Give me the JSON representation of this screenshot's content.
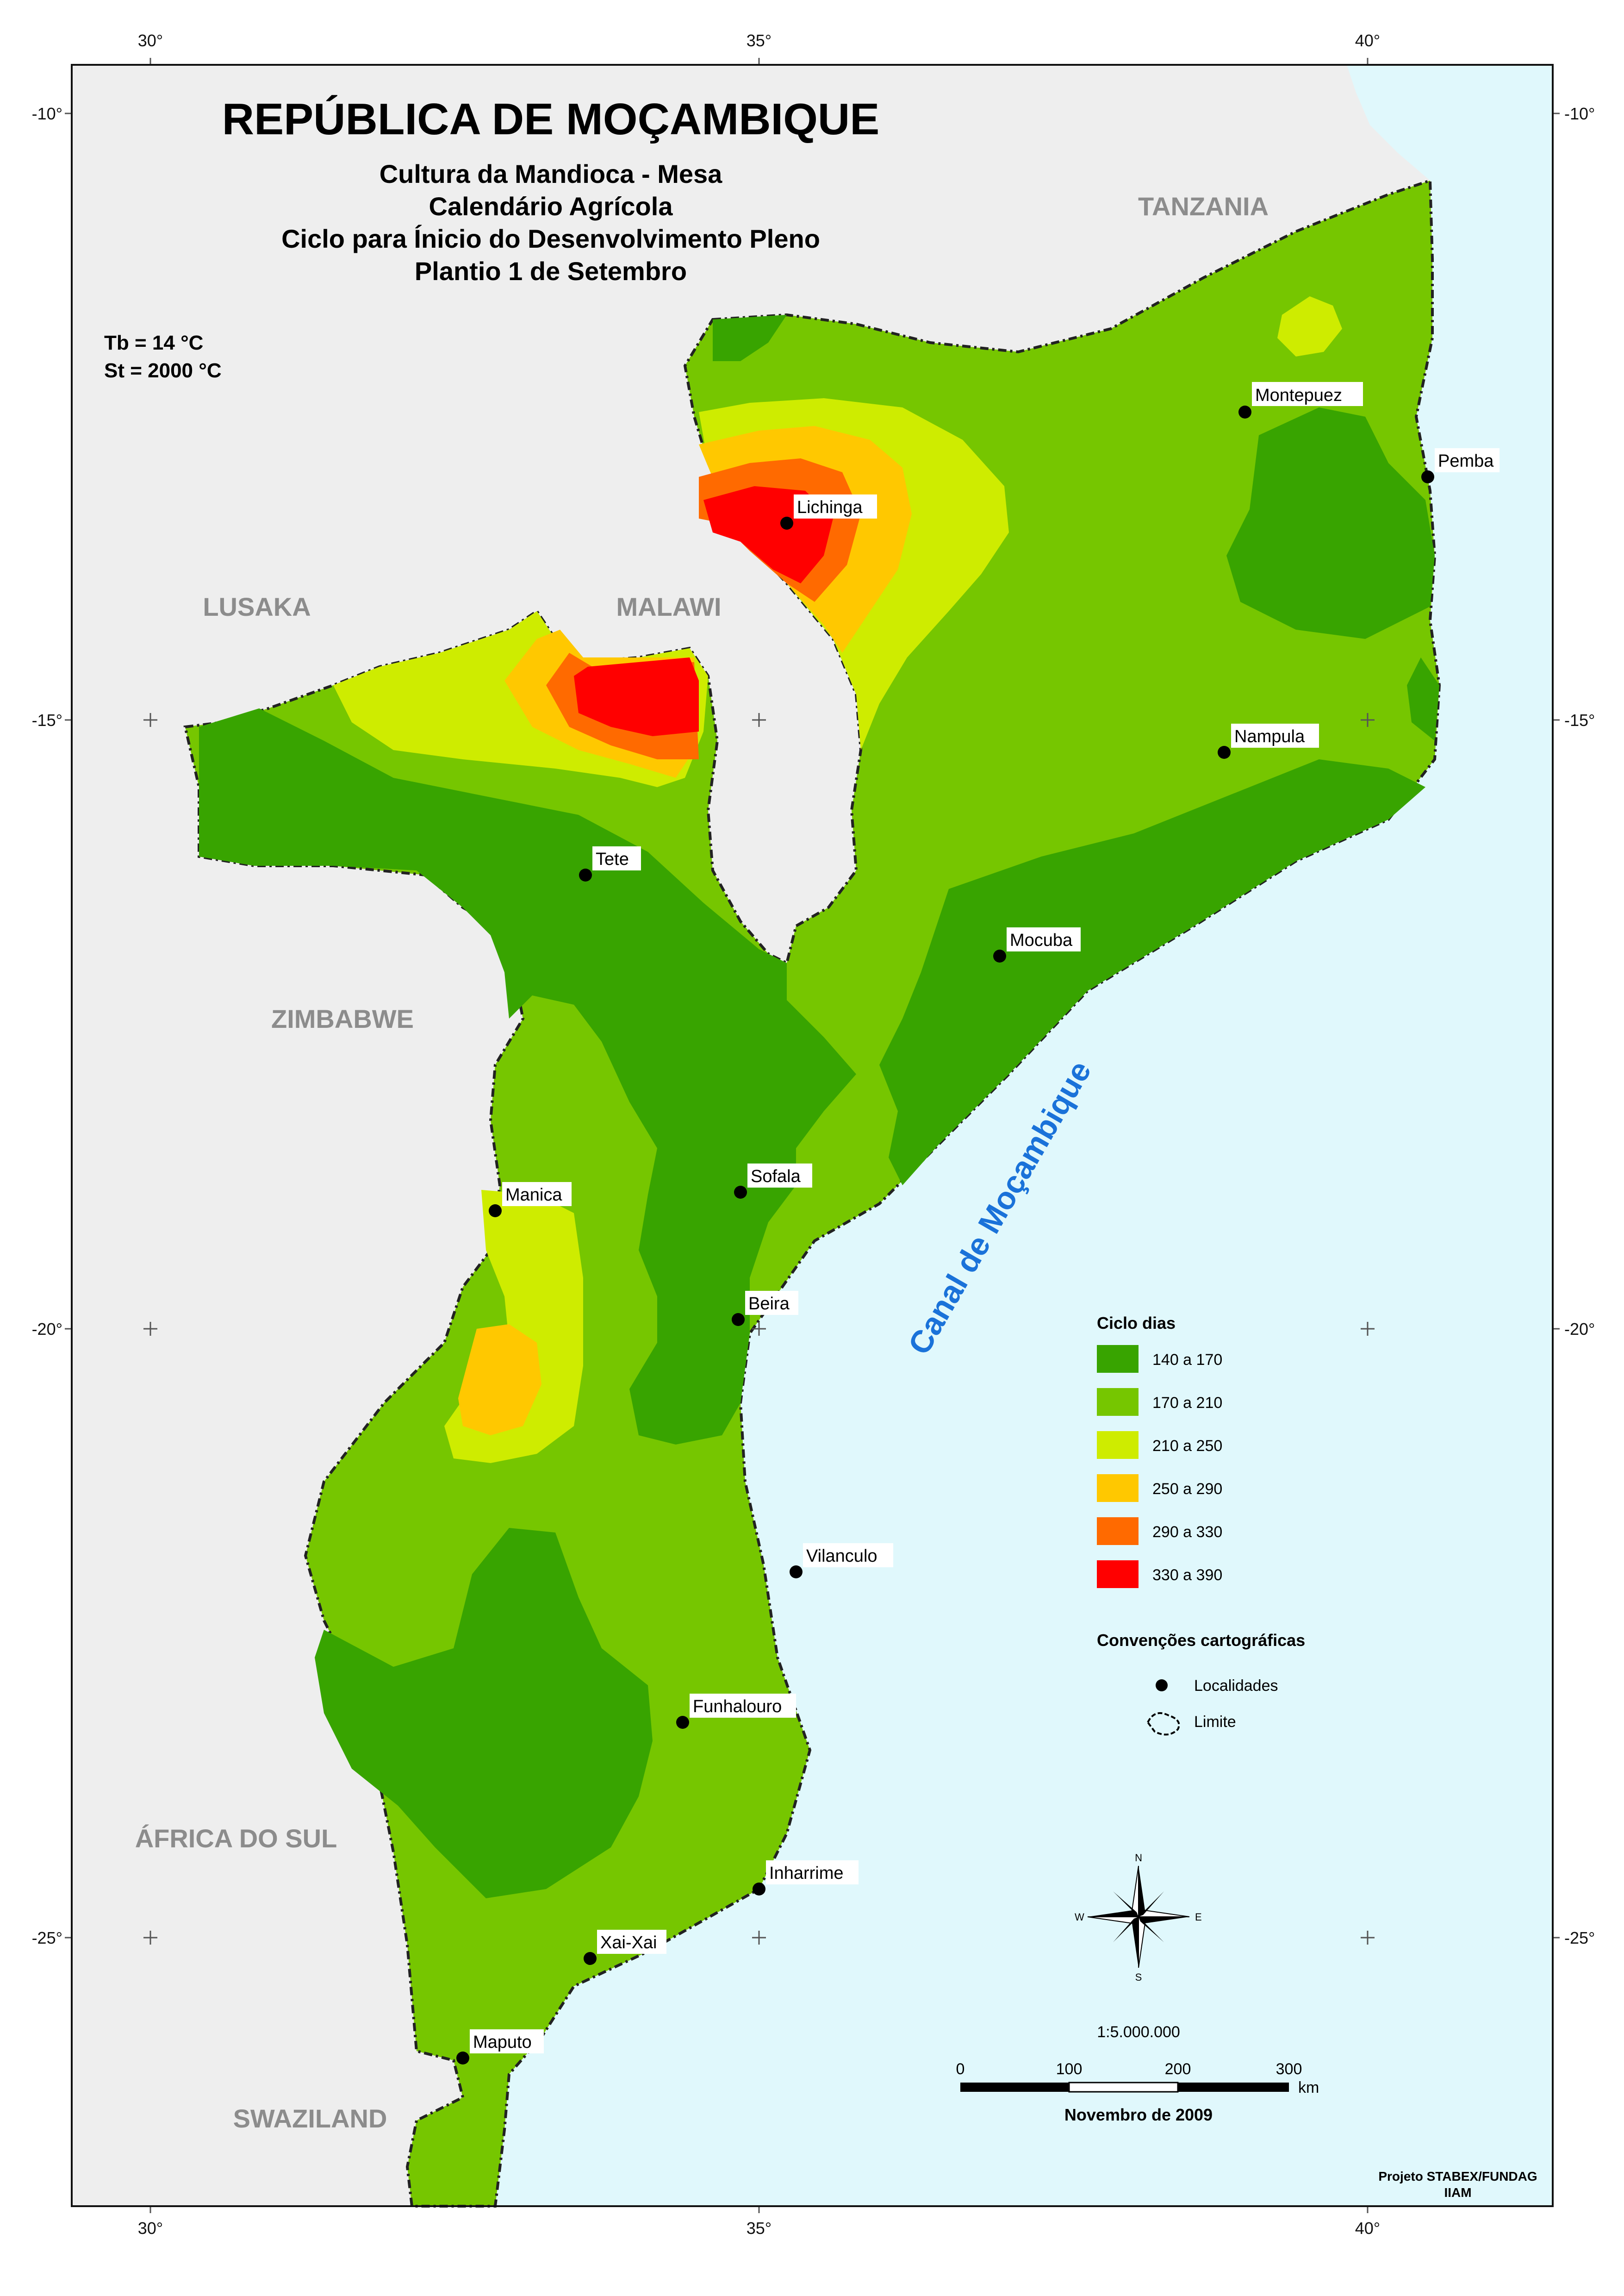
{
  "title": "REPÚBLICA DE MOÇAMBIQUE",
  "subtitle_lines": [
    "Cultura da Mandioca - Mesa",
    "Calendário Agrícola",
    "Ciclo para Ínicio do Desenvolvimento Pleno",
    "Plantio 1 de Setembro"
  ],
  "parameters": [
    "Tb = 14 °C",
    "St =  2000 °C"
  ],
  "grid": {
    "lon_labels": [
      "30°",
      "35°",
      "40°"
    ],
    "lat_labels": [
      "-10°",
      "-15°",
      "-20°",
      "-25°"
    ]
  },
  "neighbors": [
    "TANZANIA",
    "LUSAKA",
    "MALAWI",
    "ZIMBABWE",
    "ÁFRICA DO SUL",
    "SWAZILAND"
  ],
  "sea_label": "Canal de Moçambique",
  "localities": [
    "Montepuez",
    "Pemba",
    "Lichinga",
    "Nampula",
    "Tete",
    "Mocuba",
    "Sofala",
    "Manica",
    "Beira",
    "Vilanculo",
    "Funhalouro",
    "Inharrime",
    "Xai-Xai",
    "Maputo"
  ],
  "legend": {
    "title": "Ciclo dias",
    "classes": [
      {
        "label": "140 a 170",
        "color": "#38a400"
      },
      {
        "label": "170 a 210",
        "color": "#76c600"
      },
      {
        "label": "210 a 250",
        "color": "#ceec00"
      },
      {
        "label": "250 a 290",
        "color": "#ffc800"
      },
      {
        "label": "290 a 330",
        "color": "#ff6a00"
      },
      {
        "label": "330 a 390",
        "color": "#ff0000"
      }
    ],
    "conventions_title": "Convenções cartográficas",
    "conventions": [
      "Localidades",
      "Limite"
    ]
  },
  "compass": {
    "n": "N",
    "s": "S",
    "e": "E",
    "w": "W"
  },
  "scale": {
    "ratio": "1:5.000.000",
    "ticks": [
      "0",
      "100",
      "200",
      "300"
    ],
    "unit": "km"
  },
  "date": "Novembro de 2009",
  "credits": [
    "Projeto STABEX/FUNDAG",
    "IIAM"
  ],
  "colors": {
    "land_outside": "#eeeeee",
    "sea": "#e0f8fc"
  }
}
